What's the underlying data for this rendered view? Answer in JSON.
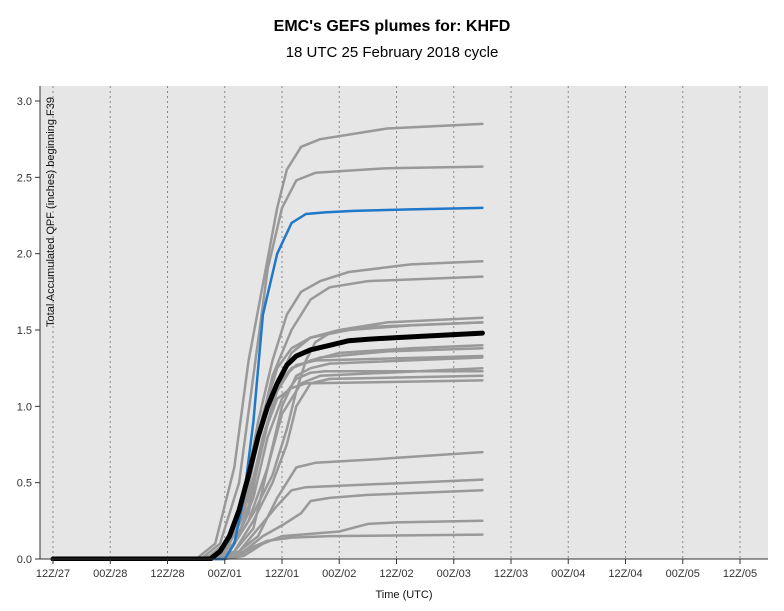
{
  "chart_data": {
    "type": "line",
    "title": "EMC's GEFS plumes for: KHFD",
    "subtitle": "18 UTC 25 February 2018 cycle",
    "xlabel": "Time (UTC)",
    "ylabel": "Total Accumulated QPF (inches) beginning F39",
    "ylim": [
      0,
      3.0
    ],
    "yticks": [
      "0.0",
      "0.5",
      "1.0",
      "1.5",
      "2.0",
      "2.5",
      "3.0"
    ],
    "xticks": [
      "12Z/27",
      "00Z/28",
      "12Z/28",
      "00Z/01",
      "12Z/01",
      "00Z/02",
      "12Z/02",
      "00Z/03",
      "12Z/03",
      "00Z/04",
      "12Z/04",
      "00Z/05",
      "12Z/05"
    ],
    "grid": "vertical-dotted",
    "colors": {
      "member": "#999999",
      "mean": "#000000",
      "control": "#1f78c8",
      "background": "#e6e6e6"
    },
    "series": [
      {
        "role": "member",
        "values": [
          [
            0,
            0
          ],
          [
            30,
            0
          ],
          [
            33,
            0.02
          ],
          [
            38,
            0.1
          ],
          [
            42,
            0.4
          ],
          [
            45,
            0.8
          ],
          [
            48,
            1.05
          ],
          [
            51,
            1.18
          ],
          [
            54,
            1.22
          ],
          [
            57,
            1.23
          ],
          [
            66,
            1.23
          ],
          [
            90,
            1.23
          ]
        ]
      },
      {
        "role": "member",
        "values": [
          [
            0,
            0
          ],
          [
            32,
            0
          ],
          [
            35,
            0.05
          ],
          [
            38,
            0.2
          ],
          [
            41,
            0.55
          ],
          [
            44,
            0.95
          ],
          [
            47,
            1.25
          ],
          [
            50,
            1.38
          ],
          [
            54,
            1.45
          ],
          [
            60,
            1.5
          ],
          [
            70,
            1.55
          ],
          [
            90,
            1.58
          ]
        ]
      },
      {
        "role": "member",
        "values": [
          [
            0,
            0
          ],
          [
            30,
            0
          ],
          [
            34,
            0.1
          ],
          [
            38,
            0.6
          ],
          [
            41,
            1.3
          ],
          [
            44,
            1.8
          ],
          [
            47,
            2.3
          ],
          [
            49,
            2.55
          ],
          [
            52,
            2.7
          ],
          [
            56,
            2.75
          ],
          [
            70,
            2.82
          ],
          [
            90,
            2.85
          ]
        ]
      },
      {
        "role": "member",
        "values": [
          [
            0,
            0
          ],
          [
            31,
            0
          ],
          [
            35,
            0.1
          ],
          [
            39,
            0.5
          ],
          [
            42,
            1.2
          ],
          [
            45,
            1.9
          ],
          [
            48,
            2.3
          ],
          [
            51,
            2.48
          ],
          [
            55,
            2.53
          ],
          [
            70,
            2.56
          ],
          [
            90,
            2.57
          ]
        ]
      },
      {
        "role": "member",
        "values": [
          [
            0,
            0
          ],
          [
            32,
            0
          ],
          [
            36,
            0.1
          ],
          [
            40,
            0.4
          ],
          [
            43,
            0.9
          ],
          [
            46,
            1.3
          ],
          [
            49,
            1.6
          ],
          [
            52,
            1.75
          ],
          [
            56,
            1.82
          ],
          [
            62,
            1.88
          ],
          [
            75,
            1.93
          ],
          [
            90,
            1.95
          ]
        ]
      },
      {
        "role": "member",
        "values": [
          [
            0,
            0
          ],
          [
            32,
            0
          ],
          [
            36,
            0.05
          ],
          [
            40,
            0.3
          ],
          [
            43,
            0.8
          ],
          [
            46,
            1.2
          ],
          [
            50,
            1.5
          ],
          [
            54,
            1.7
          ],
          [
            58,
            1.78
          ],
          [
            66,
            1.82
          ],
          [
            90,
            1.85
          ]
        ]
      },
      {
        "role": "member",
        "values": [
          [
            0,
            0
          ],
          [
            33,
            0
          ],
          [
            37,
            0.05
          ],
          [
            41,
            0.3
          ],
          [
            44,
            0.8
          ],
          [
            47,
            1.1
          ],
          [
            50,
            1.25
          ],
          [
            54,
            1.3
          ],
          [
            60,
            1.35
          ],
          [
            75,
            1.38
          ],
          [
            90,
            1.4
          ]
        ]
      },
      {
        "role": "member",
        "values": [
          [
            0,
            0
          ],
          [
            33,
            0
          ],
          [
            37,
            0.1
          ],
          [
            41,
            0.5
          ],
          [
            44,
            0.9
          ],
          [
            47,
            1.15
          ],
          [
            51,
            1.27
          ],
          [
            55,
            1.3
          ],
          [
            90,
            1.33
          ]
        ]
      },
      {
        "role": "member",
        "values": [
          [
            0,
            0
          ],
          [
            34,
            0
          ],
          [
            38,
            0.05
          ],
          [
            42,
            0.2
          ],
          [
            45,
            0.6
          ],
          [
            48,
            1.0
          ],
          [
            51,
            1.2
          ],
          [
            54,
            1.25
          ],
          [
            58,
            1.28
          ],
          [
            90,
            1.32
          ]
        ]
      },
      {
        "role": "member",
        "values": [
          [
            0,
            0
          ],
          [
            34,
            0
          ],
          [
            38,
            0.1
          ],
          [
            42,
            0.3
          ],
          [
            46,
            0.55
          ],
          [
            49,
            0.85
          ],
          [
            51,
            1.1
          ],
          [
            53,
            1.3
          ],
          [
            55,
            1.42
          ],
          [
            58,
            1.48
          ],
          [
            66,
            1.52
          ],
          [
            90,
            1.55
          ]
        ]
      },
      {
        "role": "member",
        "values": [
          [
            0,
            0
          ],
          [
            33,
            0
          ],
          [
            37,
            0.1
          ],
          [
            41,
            0.4
          ],
          [
            44,
            0.8
          ],
          [
            47,
            1.05
          ],
          [
            50,
            1.12
          ],
          [
            53,
            1.15
          ],
          [
            90,
            1.17
          ]
        ]
      },
      {
        "role": "member",
        "values": [
          [
            0,
            0
          ],
          [
            34,
            0
          ],
          [
            38,
            0.05
          ],
          [
            42,
            0.25
          ],
          [
            46,
            0.5
          ],
          [
            49,
            0.75
          ],
          [
            51,
            1.0
          ],
          [
            54,
            1.15
          ],
          [
            58,
            1.18
          ],
          [
            90,
            1.2
          ]
        ]
      },
      {
        "role": "member",
        "values": [
          [
            0,
            0
          ],
          [
            35,
            0
          ],
          [
            39,
            0.05
          ],
          [
            43,
            0.2
          ],
          [
            47,
            0.35
          ],
          [
            50,
            0.45
          ],
          [
            53,
            0.47
          ],
          [
            60,
            0.48
          ],
          [
            75,
            0.5
          ],
          [
            90,
            0.52
          ]
        ]
      },
      {
        "role": "member",
        "values": [
          [
            0,
            0
          ],
          [
            35,
            0
          ],
          [
            39,
            0.05
          ],
          [
            43,
            0.15
          ],
          [
            47,
            0.4
          ],
          [
            51,
            0.6
          ],
          [
            55,
            0.63
          ],
          [
            66,
            0.65
          ],
          [
            80,
            0.68
          ],
          [
            90,
            0.7
          ]
        ]
      },
      {
        "role": "member",
        "values": [
          [
            0,
            0
          ],
          [
            36,
            0
          ],
          [
            40,
            0.05
          ],
          [
            44,
            0.15
          ],
          [
            48,
            0.22
          ],
          [
            52,
            0.3
          ],
          [
            54,
            0.38
          ],
          [
            58,
            0.4
          ],
          [
            66,
            0.42
          ],
          [
            90,
            0.45
          ]
        ]
      },
      {
        "role": "member",
        "values": [
          [
            0,
            0
          ],
          [
            36,
            0
          ],
          [
            40,
            0.02
          ],
          [
            44,
            0.1
          ],
          [
            48,
            0.15
          ],
          [
            52,
            0.16
          ],
          [
            60,
            0.18
          ],
          [
            66,
            0.23
          ],
          [
            72,
            0.24
          ],
          [
            90,
            0.25
          ]
        ]
      },
      {
        "role": "member",
        "values": [
          [
            0,
            0
          ],
          [
            35,
            0
          ],
          [
            39,
            0.02
          ],
          [
            42,
            0.08
          ],
          [
            45,
            0.12
          ],
          [
            50,
            0.14
          ],
          [
            58,
            0.15
          ],
          [
            90,
            0.16
          ]
        ]
      },
      {
        "role": "member",
        "values": [
          [
            0,
            0
          ],
          [
            33,
            0
          ],
          [
            37,
            0.1
          ],
          [
            41,
            0.35
          ],
          [
            44,
            0.75
          ],
          [
            47,
            1.15
          ],
          [
            50,
            1.35
          ],
          [
            54,
            1.45
          ],
          [
            62,
            1.5
          ],
          [
            75,
            1.53
          ],
          [
            90,
            1.55
          ]
        ]
      },
      {
        "role": "member",
        "values": [
          [
            0,
            0
          ],
          [
            32,
            0
          ],
          [
            36,
            0.08
          ],
          [
            40,
            0.35
          ],
          [
            43,
            0.8
          ],
          [
            46,
            1.1
          ],
          [
            50,
            1.25
          ],
          [
            56,
            1.32
          ],
          [
            70,
            1.36
          ],
          [
            90,
            1.38
          ]
        ]
      },
      {
        "role": "member",
        "values": [
          [
            0,
            0
          ],
          [
            33,
            0
          ],
          [
            37,
            0.05
          ],
          [
            41,
            0.25
          ],
          [
            45,
            0.6
          ],
          [
            48,
            0.95
          ],
          [
            52,
            1.15
          ],
          [
            56,
            1.2
          ],
          [
            70,
            1.22
          ],
          [
            90,
            1.25
          ]
        ]
      },
      {
        "role": "control",
        "values": [
          [
            0,
            0
          ],
          [
            36,
            0
          ],
          [
            38,
            0.1
          ],
          [
            40,
            0.4
          ],
          [
            42,
            0.9
          ],
          [
            44,
            1.6
          ],
          [
            47,
            2.0
          ],
          [
            50,
            2.2
          ],
          [
            53,
            2.26
          ],
          [
            57,
            2.27
          ],
          [
            63,
            2.28
          ],
          [
            75,
            2.29
          ],
          [
            90,
            2.3
          ]
        ]
      },
      {
        "role": "mean",
        "values": [
          [
            0,
            0
          ],
          [
            33,
            0
          ],
          [
            35,
            0.05
          ],
          [
            37,
            0.15
          ],
          [
            39,
            0.32
          ],
          [
            41,
            0.55
          ],
          [
            43,
            0.8
          ],
          [
            45,
            1.0
          ],
          [
            47,
            1.15
          ],
          [
            49,
            1.27
          ],
          [
            51,
            1.33
          ],
          [
            54,
            1.37
          ],
          [
            58,
            1.4
          ],
          [
            62,
            1.43
          ],
          [
            66,
            1.44
          ],
          [
            72,
            1.45
          ],
          [
            78,
            1.46
          ],
          [
            84,
            1.47
          ],
          [
            90,
            1.48
          ]
        ]
      }
    ]
  }
}
